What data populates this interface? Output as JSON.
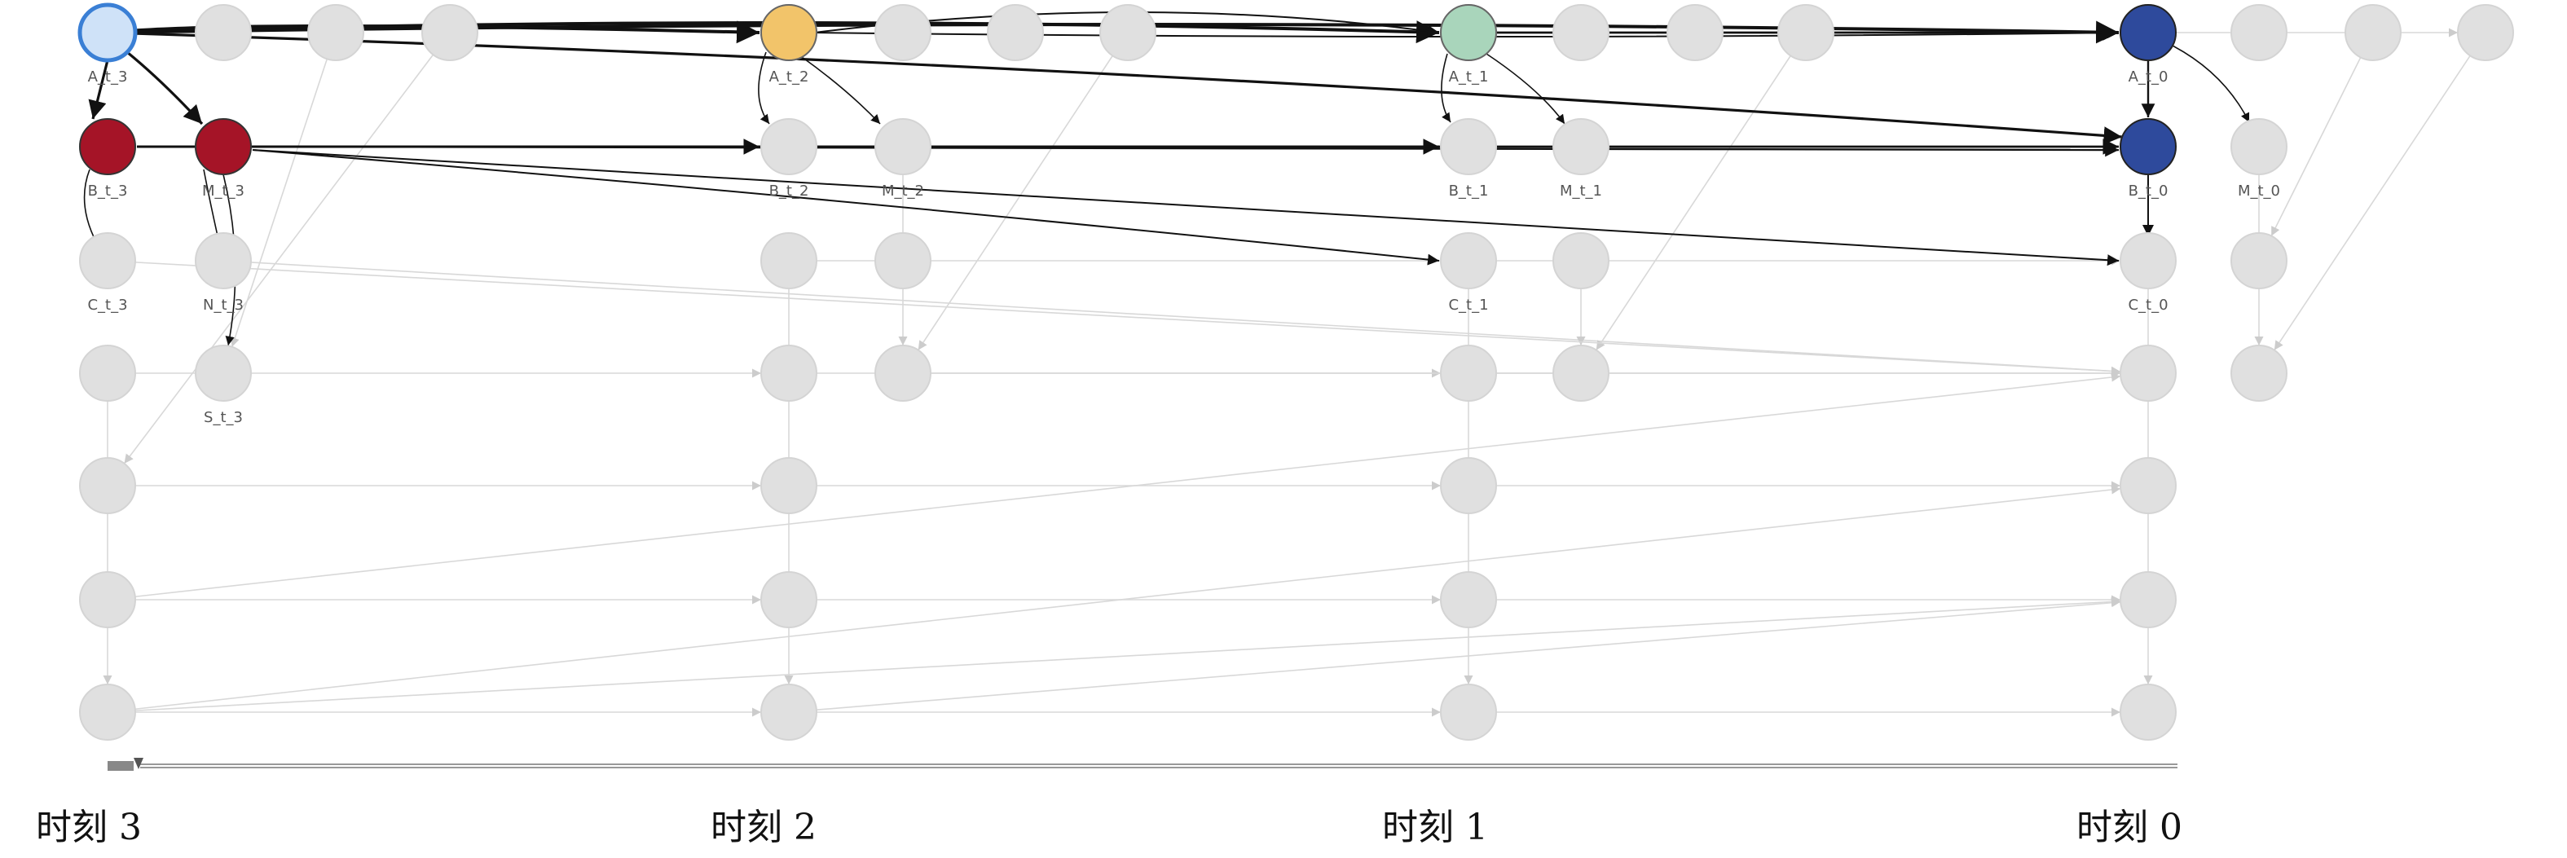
{
  "nodes": [
    {
      "label": "A_t_3"
    },
    {
      "label": "B_t_3"
    },
    {
      "label": "M_t_3"
    },
    {
      "label": "C_t_3"
    },
    {
      "label": "N_t_3"
    },
    {
      "label": "S_t_3"
    },
    {
      "label": "A_t_2"
    },
    {
      "label": "B_t_2"
    },
    {
      "label": "M_t_2"
    },
    {
      "label": "A_t_1"
    },
    {
      "label": "B_t_1"
    },
    {
      "label": "M_t_1"
    },
    {
      "label": "C_t_1"
    },
    {
      "label": "A_t_0"
    },
    {
      "label": "B_t_0"
    },
    {
      "label": "M_t_0"
    },
    {
      "label": "C_t_0"
    }
  ],
  "time_labels": [
    "时刻 3",
    "时刻 2",
    "时刻 1",
    "时刻 0"
  ]
}
